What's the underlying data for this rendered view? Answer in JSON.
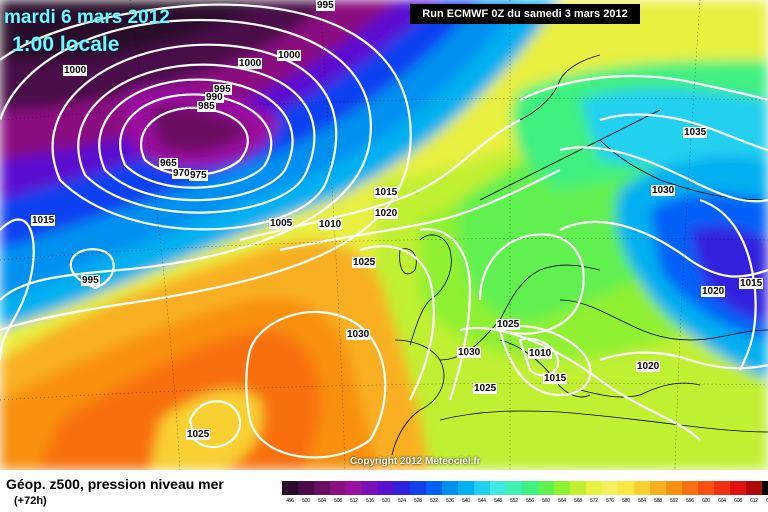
{
  "header": {
    "date": "mardi 6 mars 2012",
    "time": "1:00 locale",
    "run": "Run ECMWF 0Z du samedi 3 mars 2012"
  },
  "footer": {
    "title": "Géop. z500, pression niveau mer",
    "subtitle": "(+72h)",
    "copyright": "Copyright 2012 Meteociel.fr"
  },
  "legend": {
    "values": [
      "496",
      "500",
      "504",
      "508",
      "512",
      "516",
      "520",
      "524",
      "528",
      "532",
      "536",
      "540",
      "544",
      "548",
      "552",
      "556",
      "560",
      "564",
      "568",
      "572",
      "576",
      "580",
      "584",
      "588",
      "592",
      "596",
      "600",
      "604",
      "608",
      "612",
      "616"
    ],
    "colors": [
      "#2a0a2a",
      "#4a0a4a",
      "#6a1060",
      "#8a1080",
      "#9a10a0",
      "#7a10b8",
      "#5a10d0",
      "#3020e0",
      "#1040f0",
      "#0060f8",
      "#0090f0",
      "#00b0f0",
      "#20d0f0",
      "#40e8e0",
      "#40f0b0",
      "#40f080",
      "#60f050",
      "#90f030",
      "#c0f030",
      "#e8f040",
      "#f8f060",
      "#f8e840",
      "#f8d030",
      "#f8b020",
      "#f89010",
      "#f87010",
      "#f85010",
      "#f03010",
      "#e01010",
      "#b00808",
      "#000000"
    ]
  },
  "isobar_labels": [
    {
      "name": "995",
      "text": "995"
    },
    {
      "name": "1000a",
      "text": "1000"
    },
    {
      "name": "1000b",
      "text": "1000"
    },
    {
      "name": "1000c",
      "text": "1000"
    },
    {
      "name": "995b",
      "text": "995"
    },
    {
      "name": "990",
      "text": "990"
    },
    {
      "name": "985",
      "text": "985"
    },
    {
      "name": "965",
      "text": "965"
    },
    {
      "name": "970",
      "text": "970"
    },
    {
      "name": "975",
      "text": "975"
    },
    {
      "name": "1015a",
      "text": "1015"
    },
    {
      "name": "995c",
      "text": "995"
    },
    {
      "name": "1005",
      "text": "1005"
    },
    {
      "name": "1010a",
      "text": "1010"
    },
    {
      "name": "1015b",
      "text": "1015"
    },
    {
      "name": "1020a",
      "text": "1020"
    },
    {
      "name": "1025a",
      "text": "1025"
    },
    {
      "name": "1030a",
      "text": "1030"
    },
    {
      "name": "1025b",
      "text": "1025"
    },
    {
      "name": "1025c",
      "text": "1025"
    },
    {
      "name": "1030b",
      "text": "1030"
    },
    {
      "name": "1010b",
      "text": "1010"
    },
    {
      "name": "1015c",
      "text": "1015"
    },
    {
      "name": "1025d",
      "text": "1025"
    },
    {
      "name": "1020b",
      "text": "1020"
    },
    {
      "name": "1035",
      "text": "1035"
    },
    {
      "name": "1030c",
      "text": "1030"
    },
    {
      "name": "1020c",
      "text": "1020"
    },
    {
      "name": "1015d",
      "text": "1015"
    }
  ]
}
